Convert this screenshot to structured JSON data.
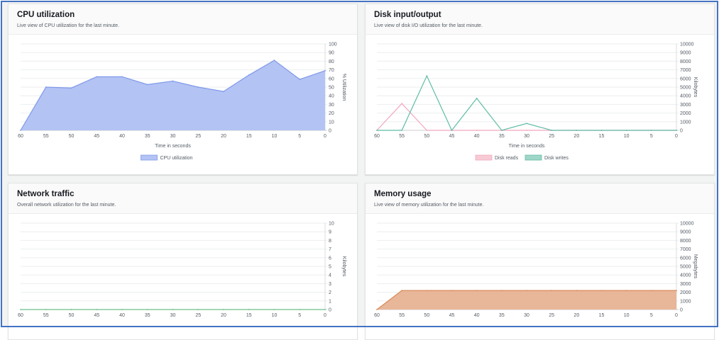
{
  "panels": [
    {
      "title": "CPU utilization",
      "subtitle": "Live view of CPU utilization for the last minute."
    },
    {
      "title": "Disk input/output",
      "subtitle": "Live view of disk I/O utilization for the last minute."
    },
    {
      "title": "Network traffic",
      "subtitle": "Overall network utilization for the last minute."
    },
    {
      "title": "Memory usage",
      "subtitle": "Live view of memory utilization for the last minute."
    }
  ],
  "chart_data": [
    {
      "type": "area",
      "x": [
        60,
        55,
        50,
        45,
        40,
        35,
        30,
        25,
        20,
        15,
        10,
        5,
        0
      ],
      "xlabel": "Time in seconds",
      "ylabel": "% Utilization",
      "ylim": [
        0,
        100
      ],
      "yticks": [
        0,
        10,
        20,
        30,
        40,
        50,
        60,
        70,
        80,
        90,
        100
      ],
      "grid": true,
      "legend": "bottom",
      "series": [
        {
          "name": "CPU utilization",
          "values": [
            0,
            50,
            49,
            62,
            62,
            53,
            57,
            50,
            45,
            64,
            81,
            59,
            69
          ],
          "color": "#7f99ea",
          "fill": "#b3c3f3",
          "filled": true
        }
      ]
    },
    {
      "type": "line",
      "x": [
        60,
        55,
        50,
        45,
        40,
        35,
        30,
        25,
        20,
        15,
        10,
        5,
        0
      ],
      "xlabel": "Time in seconds",
      "ylabel": "Kilobytes",
      "ylim": [
        0,
        10000
      ],
      "yticks": [
        0,
        1000,
        2000,
        3000,
        4000,
        5000,
        6000,
        7000,
        8000,
        9000,
        10000
      ],
      "grid": true,
      "legend": "bottom",
      "series": [
        {
          "name": "Disk reads",
          "values": [
            0,
            3100,
            0,
            0,
            0,
            0,
            0,
            0,
            0,
            0,
            0,
            0,
            0
          ],
          "color": "#f2a8bd",
          "fill": "#f7cad6",
          "filled": false
        },
        {
          "name": "Disk writes",
          "values": [
            0,
            0,
            6300,
            0,
            3700,
            0,
            800,
            0,
            0,
            0,
            0,
            0,
            0
          ],
          "color": "#5fbca6",
          "fill": "#9fd6c8",
          "filled": false
        }
      ]
    },
    {
      "type": "line",
      "x": [
        60,
        55,
        50,
        45,
        40,
        35,
        30,
        25,
        20,
        15,
        10,
        5,
        0
      ],
      "xlabel": "",
      "ylabel": "Kilobytes",
      "ylim": [
        0,
        10
      ],
      "yticks": [
        0,
        1,
        2,
        3,
        4,
        5,
        6,
        7,
        8,
        9,
        10
      ],
      "grid": true,
      "series": [
        {
          "values": [
            0,
            0,
            0,
            0,
            0,
            0,
            0,
            0,
            0,
            0,
            0,
            0,
            0
          ],
          "color": "#6cbf8c",
          "filled": false
        }
      ]
    },
    {
      "type": "area",
      "x": [
        60,
        55,
        50,
        45,
        40,
        35,
        30,
        25,
        20,
        15,
        10,
        5,
        0
      ],
      "xlabel": "",
      "ylabel": "Megabytes",
      "ylim": [
        0,
        10000
      ],
      "yticks": [
        0,
        1000,
        2000,
        3000,
        4000,
        5000,
        6000,
        7000,
        8000,
        9000,
        10000
      ],
      "grid": true,
      "series": [
        {
          "values": [
            0,
            2200,
            2200,
            2200,
            2200,
            2200,
            2200,
            2200,
            2200,
            2200,
            2200,
            2200,
            2200
          ],
          "color": "#d98b5c",
          "fill": "#e8b699",
          "filled": true
        }
      ]
    }
  ]
}
